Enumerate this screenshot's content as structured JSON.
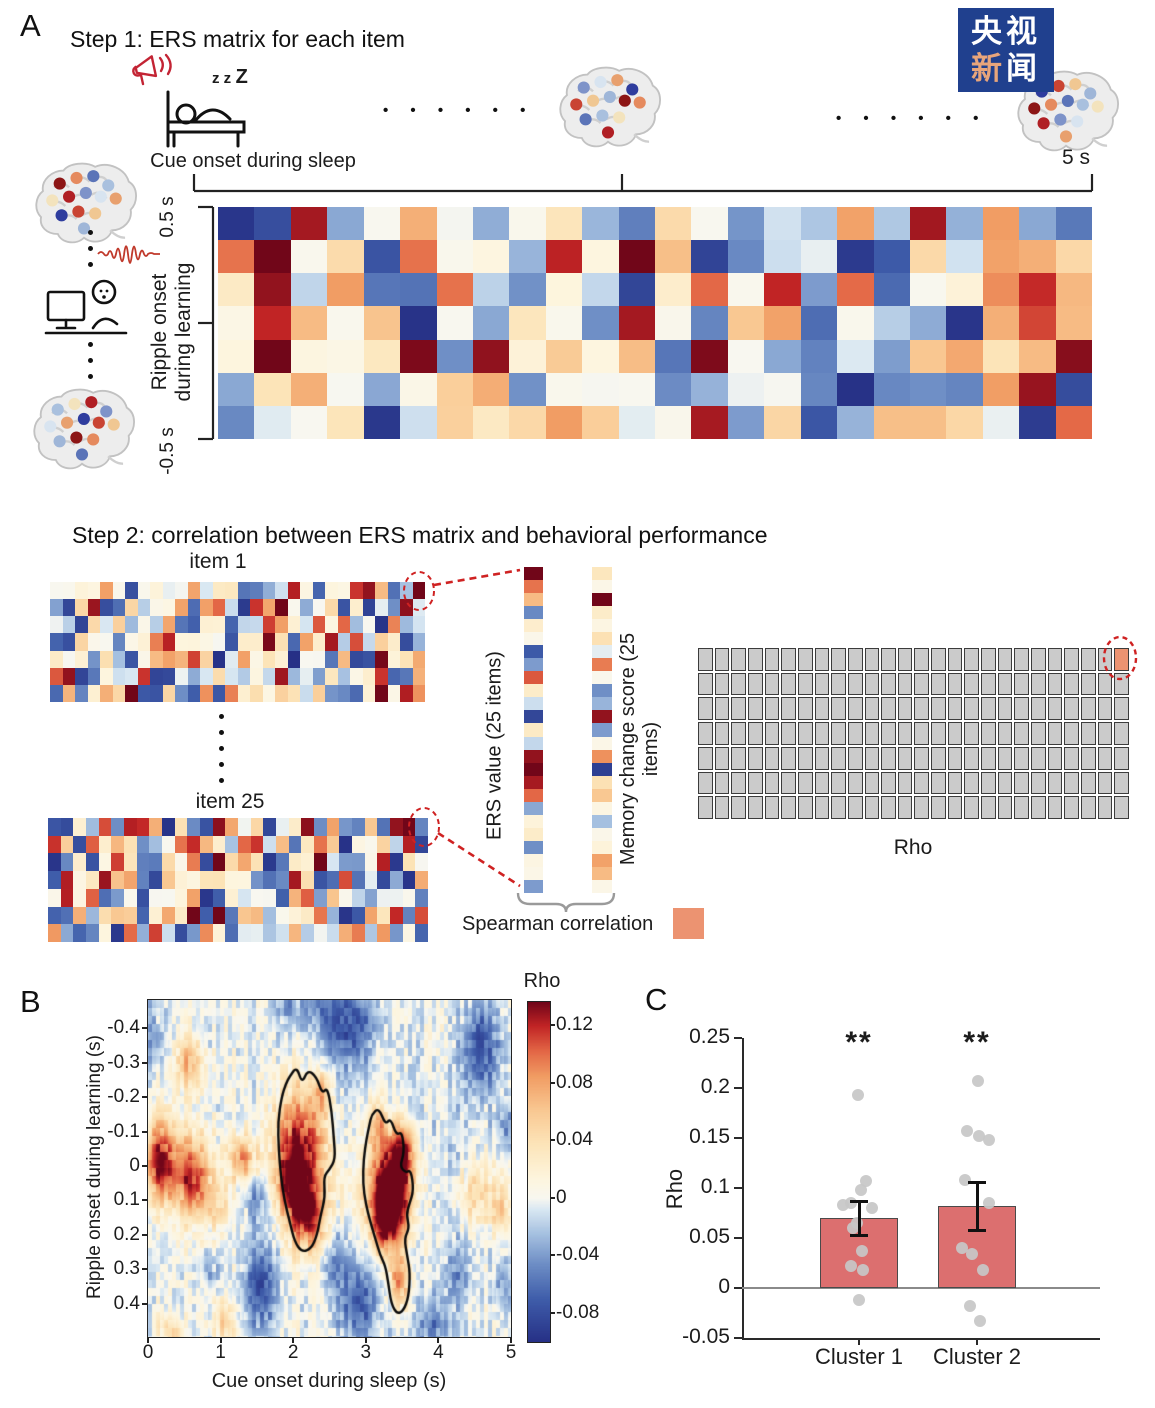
{
  "watermark": {
    "bg": "#20408e",
    "row1": [
      {
        "ch": "央",
        "color": "#ffffff"
      },
      {
        "ch": "视",
        "color": "#ffffff"
      }
    ],
    "row2": [
      {
        "ch": "新",
        "color": "#e8a57b"
      },
      {
        "ch": "闻",
        "color": "#ffffff"
      }
    ]
  },
  "panelA": {
    "label": "A",
    "step1_title": "Step 1: ERS matrix for each item",
    "zzz_small": "z z",
    "zzz_big": "Z",
    "cue_label": "Cue onset during sleep",
    "dots": "• • • • • •",
    "five_s": "5 s",
    "ytick_top": "0.5 s",
    "ylabel_line1": "Ripple onset",
    "ylabel_line2": "during learning",
    "ytick_bottom": "-0.5 s",
    "step2_title": "Step 2: correlation between ERS matrix and behavioral performance",
    "item1_label": "item 1",
    "item25_label": "item 25",
    "ers_axis_label": "ERS value (25 items)",
    "memory_axis_label": "Memory change score (25 items)",
    "spearman_label": "Spearman correlation",
    "spearman_swatch_color": "#ec9371",
    "grid_rho_label": "Rho"
  },
  "panelB": {
    "label": "B"
  },
  "panelC": {
    "label": "C"
  },
  "brain_dot_colors": [
    "#8c1515",
    "#e58a5e",
    "#5b74b8",
    "#a9c0de",
    "#f3e3bd",
    "#b01f24",
    "#7e93c9",
    "#d8e4f0",
    "#e8a06e",
    "#2f3d9e",
    "#c94433",
    "#f0c792",
    "#9fb6d8"
  ],
  "chart_data": [
    {
      "id": "mat-top",
      "type": "heatmap-schematic",
      "title": "ERS matrix (one item): similarity of sleep cue response vs learning ripple response",
      "rows": 7,
      "cols": 24,
      "seed": 7,
      "power": 1.7,
      "value_range": [
        -1,
        1
      ],
      "x_axis": "Cue onset during sleep (0 to 5 s)",
      "y_axis": "Ripple onset during learning (0.5 s to -0.5 s)",
      "accents": [
        [
          0,
          3,
          -0.35
        ],
        [
          0,
          5,
          0.55
        ],
        [
          0,
          17,
          0.6
        ],
        [
          0,
          22,
          -0.35
        ],
        [
          1,
          0,
          0.72
        ],
        [
          1,
          1,
          1.0
        ],
        [
          1,
          8,
          -0.3
        ],
        [
          1,
          11,
          1.0
        ],
        [
          1,
          21,
          0.6
        ],
        [
          1,
          22,
          0.55
        ],
        [
          1,
          23,
          0.35
        ],
        [
          2,
          1,
          0.95
        ],
        [
          2,
          3,
          0.62
        ],
        [
          2,
          15,
          0.88
        ],
        [
          2,
          16,
          -0.4
        ],
        [
          3,
          2,
          0.5
        ],
        [
          3,
          7,
          -0.35
        ],
        [
          3,
          10,
          -0.45
        ],
        [
          3,
          13,
          -0.5
        ],
        [
          3,
          14,
          0.45
        ],
        [
          3,
          15,
          0.6
        ],
        [
          3,
          16,
          -0.62
        ],
        [
          3,
          21,
          0.55
        ],
        [
          4,
          1,
          1.0
        ],
        [
          4,
          6,
          -0.45
        ],
        [
          4,
          15,
          -0.35
        ],
        [
          4,
          22,
          0.5
        ],
        [
          5,
          0,
          -0.35
        ],
        [
          5,
          2,
          0.55
        ],
        [
          5,
          19,
          -0.45
        ],
        [
          5,
          20,
          -0.5
        ],
        [
          6,
          4,
          -0.95
        ],
        [
          6,
          8,
          0.35
        ],
        [
          6,
          9,
          0.62
        ],
        [
          6,
          13,
          0.92
        ],
        [
          6,
          14,
          -0.4
        ],
        [
          6,
          22,
          -0.92
        ]
      ]
    },
    {
      "id": "mat-item1",
      "type": "heatmap-schematic",
      "title": "ERS matrix item 1",
      "rows": 7,
      "cols": 30,
      "seed": 11,
      "power": 1.4,
      "value_range": [
        -1,
        1
      ],
      "accents": [
        [
          0,
          19,
          0.9
        ],
        [
          0,
          24,
          0.85
        ],
        [
          0,
          25,
          0.95
        ],
        [
          0,
          27,
          -0.6
        ],
        [
          0,
          29,
          1.0
        ],
        [
          1,
          4,
          -0.8
        ],
        [
          1,
          13,
          0.75
        ],
        [
          1,
          16,
          0.85
        ],
        [
          1,
          18,
          1.0
        ],
        [
          1,
          27,
          -0.45
        ],
        [
          2,
          23,
          0.75
        ],
        [
          3,
          5,
          -0.5
        ],
        [
          3,
          20,
          0.6
        ],
        [
          4,
          8,
          0.5
        ],
        [
          4,
          9,
          0.6
        ],
        [
          5,
          7,
          0.85
        ],
        [
          5,
          26,
          0.85
        ],
        [
          6,
          6,
          1.0
        ],
        [
          6,
          12,
          0.65
        ],
        [
          6,
          26,
          1.0
        ]
      ]
    },
    {
      "id": "mat-item25",
      "type": "heatmap-schematic",
      "title": "ERS matrix item 25",
      "rows": 7,
      "cols": 30,
      "seed": 23,
      "power": 1.4,
      "value_range": [
        -1,
        1
      ],
      "accents": [
        [
          0,
          4,
          0.8
        ],
        [
          0,
          6,
          0.9
        ],
        [
          0,
          27,
          0.95
        ],
        [
          0,
          28,
          1.0
        ],
        [
          0,
          29,
          -0.5
        ],
        [
          1,
          2,
          -0.8
        ],
        [
          1,
          16,
          0.85
        ],
        [
          1,
          28,
          0.9
        ],
        [
          2,
          11,
          0.7
        ],
        [
          2,
          13,
          1.0
        ],
        [
          2,
          21,
          1.0
        ],
        [
          2,
          26,
          0.9
        ],
        [
          3,
          17,
          -0.6
        ],
        [
          3,
          23,
          0.8
        ],
        [
          4,
          1,
          0.9
        ],
        [
          4,
          11,
          0.6
        ],
        [
          5,
          11,
          1.0
        ],
        [
          5,
          13,
          1.0
        ],
        [
          5,
          29,
          0.8
        ],
        [
          6,
          24,
          0.7
        ]
      ]
    },
    {
      "id": "strip-ers",
      "type": "column-strip",
      "title": "ERS value (25 items)",
      "values": [
        1.0,
        0.72,
        0.5,
        -0.48,
        0.18,
        0.04,
        -0.72,
        -0.4,
        0.78,
        0.2,
        -0.12,
        -0.85,
        0.22,
        -0.15,
        0.95,
        1.0,
        0.92,
        0.75,
        -0.35,
        0.12,
        0.2,
        -0.45,
        0.08,
        0.05,
        -0.4
      ]
    },
    {
      "id": "strip-mem",
      "type": "column-strip",
      "title": "Memory change score (25 items)",
      "values": [
        0.25,
        0.05,
        1.0,
        0.2,
        0.08,
        0.3,
        -0.05,
        0.7,
        0.02,
        -0.45,
        -0.3,
        0.95,
        -0.4,
        0.05,
        0.65,
        -0.9,
        0.3,
        0.45,
        0.08,
        -0.25,
        0.04,
        0.12,
        0.6,
        0.5,
        0.05
      ]
    },
    {
      "id": "rho-grid",
      "type": "grid",
      "title": "Rho matrix (time x time), one cell per Spearman correlation",
      "rows": 7,
      "cols": 26,
      "fill": "#cbcbcb",
      "line": "#3c3c3c",
      "highlight": {
        "row": 0,
        "col": 25,
        "color": "#ec9371"
      }
    },
    {
      "id": "panelB",
      "type": "heatmap",
      "xlabel": "Cue onset during sleep (s)",
      "ylabel": "Ripple onset during learning (s)",
      "xlim": [
        0,
        5
      ],
      "ylim_top_to_bottom": [
        -0.48,
        0.5
      ],
      "xticks": [
        0,
        1,
        2,
        3,
        4,
        5
      ],
      "yticks": [
        -0.4,
        -0.3,
        -0.2,
        -0.1,
        0,
        0.1,
        0.2,
        0.3,
        0.4
      ],
      "colorbar": {
        "title": "Rho",
        "ticks": [
          0.12,
          0.08,
          0.04,
          0,
          -0.04,
          -0.08
        ],
        "vmax": 0.136,
        "vmin": -0.1
      },
      "significant_clusters_note": "two black-outlined positive clusters, ~2.0-2.6 s and ~3.0-3.7 s cue onset",
      "hotspots": [
        [
          0.15,
          -0.02,
          0.12,
          0.18,
          0.1
        ],
        [
          0.6,
          0.03,
          0.11,
          0.22,
          0.09
        ],
        [
          0.55,
          -0.3,
          0.06,
          0.15,
          0.06
        ],
        [
          1.3,
          -0.02,
          0.08,
          0.15,
          0.05
        ],
        [
          0.95,
          0.12,
          0.04,
          0.15,
          0.05
        ],
        [
          1.05,
          0.45,
          0.05,
          0.12,
          0.05
        ],
        [
          0.3,
          0.48,
          0.05,
          0.12,
          0.04
        ],
        [
          2.1,
          -0.07,
          0.115,
          0.28,
          0.13
        ],
        [
          2.0,
          0.05,
          0.09,
          0.18,
          0.08
        ],
        [
          2.2,
          0.15,
          0.105,
          0.2,
          0.08
        ],
        [
          2.4,
          -0.22,
          0.06,
          0.12,
          0.05
        ],
        [
          3.35,
          0.05,
          0.135,
          0.25,
          0.1
        ],
        [
          3.3,
          0.15,
          0.12,
          0.18,
          0.08
        ],
        [
          3.5,
          -0.05,
          0.09,
          0.15,
          0.06
        ],
        [
          3.15,
          -0.12,
          0.06,
          0.1,
          0.05
        ],
        [
          3.45,
          0.33,
          0.08,
          0.12,
          0.06
        ],
        [
          4.5,
          0.08,
          0.05,
          0.2,
          0.08
        ],
        [
          4.85,
          0.12,
          0.04,
          0.12,
          0.05
        ],
        [
          2.8,
          -0.42,
          -0.07,
          0.3,
          0.1
        ],
        [
          2.35,
          -0.48,
          -0.04,
          0.2,
          0.07
        ],
        [
          4.6,
          -0.35,
          -0.07,
          0.22,
          0.1
        ],
        [
          4.95,
          -0.12,
          -0.04,
          0.15,
          0.06
        ],
        [
          1.55,
          0.35,
          -0.075,
          0.18,
          0.1
        ],
        [
          1.5,
          0.1,
          -0.04,
          0.12,
          0.06
        ],
        [
          2.9,
          0.4,
          -0.065,
          0.25,
          0.1
        ],
        [
          2.55,
          0.27,
          -0.04,
          0.15,
          0.07
        ],
        [
          3.95,
          0.47,
          -0.05,
          0.18,
          0.08
        ],
        [
          4.25,
          0.3,
          -0.035,
          0.15,
          0.07
        ],
        [
          0.08,
          -0.38,
          -0.03,
          0.12,
          0.07
        ],
        [
          1.9,
          -0.46,
          -0.035,
          0.15,
          0.06
        ],
        [
          4.9,
          0.35,
          -0.04,
          0.12,
          0.06
        ],
        [
          0.85,
          0.3,
          -0.025,
          0.1,
          0.05
        ],
        [
          4.0,
          -0.02,
          -0.015,
          0.4,
          0.2
        ],
        [
          2.55,
          -0.25,
          -0.02,
          0.25,
          0.12
        ]
      ],
      "cluster_outlines": {
        "cluster1": [
          [
            1.95,
            -0.26
          ],
          [
            2.05,
            -0.29
          ],
          [
            2.12,
            -0.24
          ],
          [
            2.2,
            -0.28
          ],
          [
            2.32,
            -0.26
          ],
          [
            2.4,
            -0.21
          ],
          [
            2.47,
            -0.23
          ],
          [
            2.53,
            -0.16
          ],
          [
            2.56,
            -0.08
          ],
          [
            2.58,
            -0.02
          ],
          [
            2.5,
            0.01
          ],
          [
            2.42,
            0.03
          ],
          [
            2.44,
            0.09
          ],
          [
            2.38,
            0.14
          ],
          [
            2.33,
            0.2
          ],
          [
            2.25,
            0.24
          ],
          [
            2.12,
            0.25
          ],
          [
            2.02,
            0.22
          ],
          [
            1.95,
            0.16
          ],
          [
            1.88,
            0.1
          ],
          [
            1.83,
            0.03
          ],
          [
            1.8,
            -0.05
          ],
          [
            1.79,
            -0.13
          ],
          [
            1.84,
            -0.2
          ],
          [
            1.9,
            -0.24
          ]
        ],
        "cluster2": [
          [
            3.08,
            -0.15
          ],
          [
            3.18,
            -0.17
          ],
          [
            3.27,
            -0.12
          ],
          [
            3.34,
            -0.14
          ],
          [
            3.42,
            -0.09
          ],
          [
            3.5,
            -0.1
          ],
          [
            3.53,
            -0.04
          ],
          [
            3.47,
            0.0
          ],
          [
            3.55,
            0.02
          ],
          [
            3.62,
            0.01
          ],
          [
            3.66,
            0.07
          ],
          [
            3.6,
            0.11
          ],
          [
            3.56,
            0.14
          ],
          [
            3.6,
            0.18
          ],
          [
            3.53,
            0.21
          ],
          [
            3.57,
            0.26
          ],
          [
            3.61,
            0.31
          ],
          [
            3.59,
            0.38
          ],
          [
            3.52,
            0.42
          ],
          [
            3.43,
            0.43
          ],
          [
            3.35,
            0.4
          ],
          [
            3.31,
            0.34
          ],
          [
            3.27,
            0.29
          ],
          [
            3.2,
            0.26
          ],
          [
            3.13,
            0.21
          ],
          [
            3.06,
            0.16
          ],
          [
            3.0,
            0.11
          ],
          [
            2.96,
            0.05
          ],
          [
            2.97,
            -0.02
          ],
          [
            3.01,
            -0.08
          ],
          [
            3.05,
            -0.12
          ]
        ]
      }
    },
    {
      "id": "panelC",
      "type": "bar",
      "ylabel": "Rho",
      "categories": [
        "Cluster 1",
        "Cluster 2"
      ],
      "values": [
        0.07,
        0.082
      ],
      "error_low": [
        0.053,
        0.058
      ],
      "error_high": [
        0.087,
        0.106
      ],
      "significance": [
        "**",
        "**"
      ],
      "ylim": [
        -0.05,
        0.25
      ],
      "yticks": [
        0.25,
        0.2,
        0.15,
        0.1,
        0.05,
        0,
        -0.05
      ],
      "bar_color": "#dc6f6f",
      "points": [
        [
          [
            0.193,
            -1
          ],
          [
            0.107,
            7
          ],
          [
            0.098,
            2
          ],
          [
            0.085,
            -8
          ],
          [
            0.083,
            -16
          ],
          [
            0.08,
            13
          ],
          [
            0.065,
            -2
          ],
          [
            0.06,
            -6
          ],
          [
            0.037,
            3
          ],
          [
            0.022,
            -8
          ],
          [
            0.018,
            4
          ],
          [
            -0.012,
            0
          ]
        ],
        [
          [
            0.207,
            1
          ],
          [
            0.157,
            -10
          ],
          [
            0.152,
            2
          ],
          [
            0.148,
            12
          ],
          [
            0.108,
            -12
          ],
          [
            0.085,
            12
          ],
          [
            0.04,
            -15
          ],
          [
            0.034,
            -5
          ],
          [
            0.018,
            6
          ],
          [
            -0.018,
            -7
          ],
          [
            -0.033,
            3
          ]
        ]
      ]
    }
  ]
}
